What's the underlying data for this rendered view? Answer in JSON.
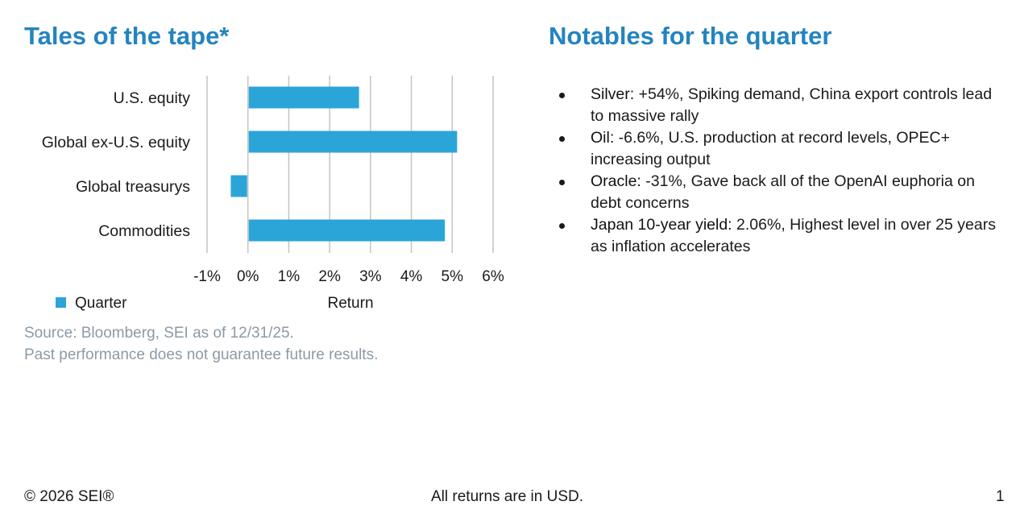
{
  "left_title": "Tales of the tape*",
  "right_title": "Notables for the quarter",
  "chart_data": {
    "type": "bar",
    "orientation": "horizontal",
    "categories": [
      "U.S. equity",
      "Global ex-U.S. equity",
      "Global treasurys",
      "Commodities"
    ],
    "series": [
      {
        "name": "Quarter",
        "values": [
          2.7,
          5.1,
          -0.4,
          4.8
        ]
      }
    ],
    "xlim": [
      -1,
      6
    ],
    "xticks": [
      -1,
      0,
      1,
      2,
      3,
      4,
      5,
      6
    ],
    "xtick_labels": [
      "-1%",
      "0%",
      "1%",
      "2%",
      "3%",
      "4%",
      "5%",
      "6%"
    ],
    "xlabel": "Return",
    "ylabel": "",
    "grid": "vertical",
    "legend_position": "bottom-left",
    "colors": {
      "bar": "#2ba5d8",
      "grid": "#c4c4c4"
    }
  },
  "source": {
    "line1": "Source: Bloomberg, SEI as of 12/31/25.",
    "line2": "Past performance does not guarantee future results."
  },
  "notables": [
    {
      "label": "Silver:",
      "text": " +54%, Spiking demand, China export controls lead to massive rally"
    },
    {
      "label": "Oil:",
      "text": " -6.6%, U.S. production at record levels, OPEC+ increasing output"
    },
    {
      "label": "Oracle:",
      "text": " -31%, Gave back all of the OpenAI euphoria on debt concerns"
    },
    {
      "label": "Japan 10-year yield:",
      "text": " 2.06%, Highest level in over 25 years as inflation accelerates"
    }
  ],
  "footer": {
    "copyright": "© 2026 SEI®",
    "note": "All returns are in USD.",
    "page": "1"
  },
  "colors": {
    "title": "#2484c0",
    "source_text": "#8c9aa6"
  }
}
